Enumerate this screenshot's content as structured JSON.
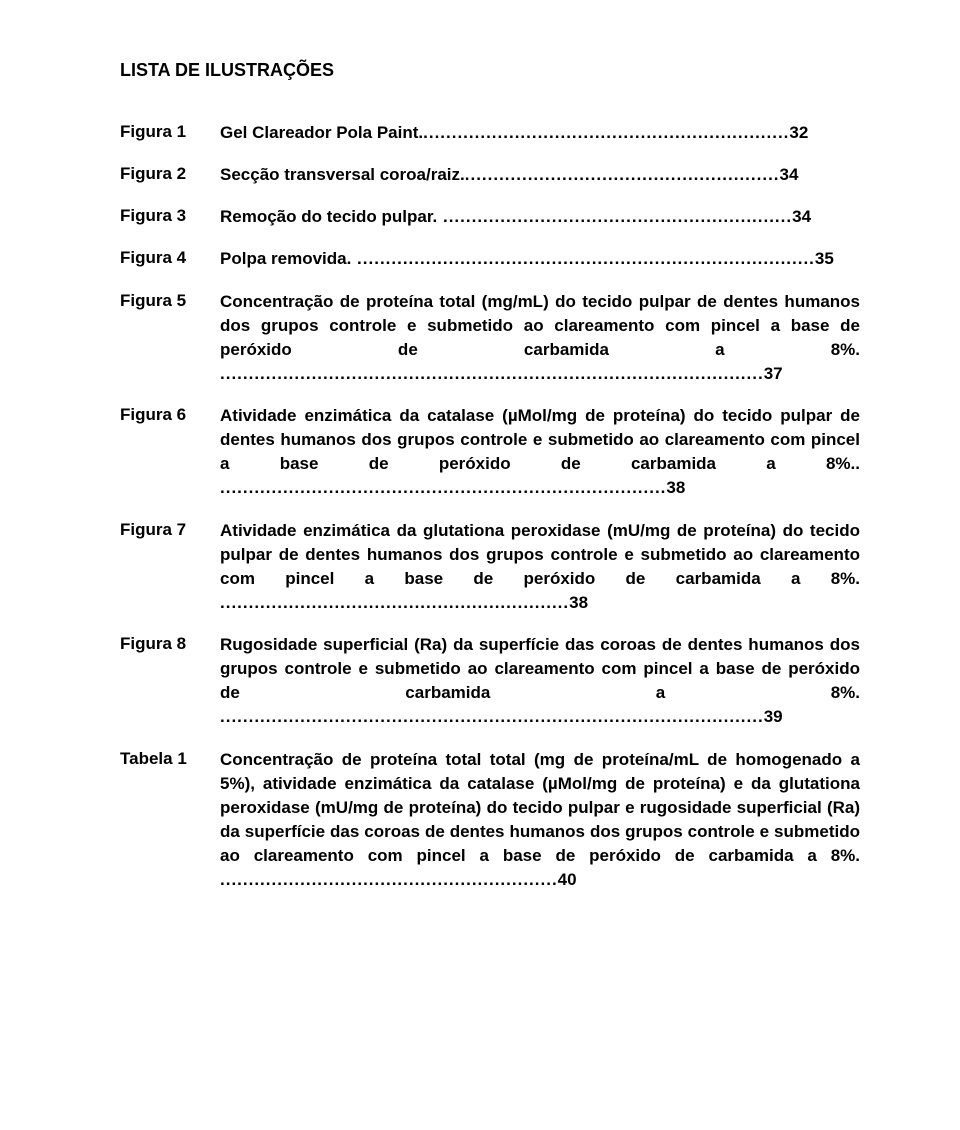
{
  "title": "LISTA DE ILUSTRAÇÕES",
  "entries": [
    {
      "label": "Figura 1",
      "text": "Gel Clareador Pola Paint.",
      "dots": "................................................................",
      "page": "32"
    },
    {
      "label": "Figura 2",
      "text": "Secção transversal coroa/raiz.",
      "dots": ".......................................................",
      "page": "34"
    },
    {
      "label": "Figura 3",
      "text": "Remoção do tecido pulpar.",
      "dots": " .............................................................",
      "page": "34"
    },
    {
      "label": "Figura 4",
      "text": "Polpa removida.",
      "dots": " ................................................................................",
      "page": "35"
    },
    {
      "label": "Figura 5",
      "text": "Concentração de proteína total (mg/mL) do tecido pulpar de dentes humanos dos grupos controle e submetido ao clareamento com pincel a base de peróxido de carbamida a 8%.",
      "dots": " ...............................................................................................",
      "page": "37"
    },
    {
      "label": "Figura 6",
      "text": "Atividade enzimática da catalase (µMol/mg de proteína) do tecido pulpar de dentes humanos dos grupos controle e submetido ao clareamento com pincel a base de peróxido de carbamida a 8%..",
      "dots": " ..............................................................................",
      "page": "38"
    },
    {
      "label": "Figura 7",
      "text": "Atividade enzimática da glutationa peroxidase (mU/mg de proteína) do tecido pulpar de dentes humanos dos grupos controle e submetido ao clareamento com pincel a base de peróxido de carbamida a 8%.",
      "dots": " .............................................................",
      "page": "38"
    },
    {
      "label": "Figura 8",
      "text": "Rugosidade superficial (Ra) da superfície das coroas de dentes humanos dos grupos controle e submetido ao clareamento com pincel a base de peróxido de carbamida a 8%.",
      "dots": " ...............................................................................................",
      "page": "39"
    },
    {
      "label": "Tabela 1",
      "text": "Concentração de proteína total total (mg de proteína/mL de homogenado a 5%), atividade enzimática da catalase (µMol/mg de proteína) e da glutationa peroxidase (mU/mg de proteína) do tecido pulpar e rugosidade superficial (Ra) da superfície das coroas de dentes humanos dos grupos controle e submetido ao clareamento com pincel a base de peróxido de carbamida a 8%.",
      "dots": " ...........................................................",
      "page": "40"
    }
  ]
}
